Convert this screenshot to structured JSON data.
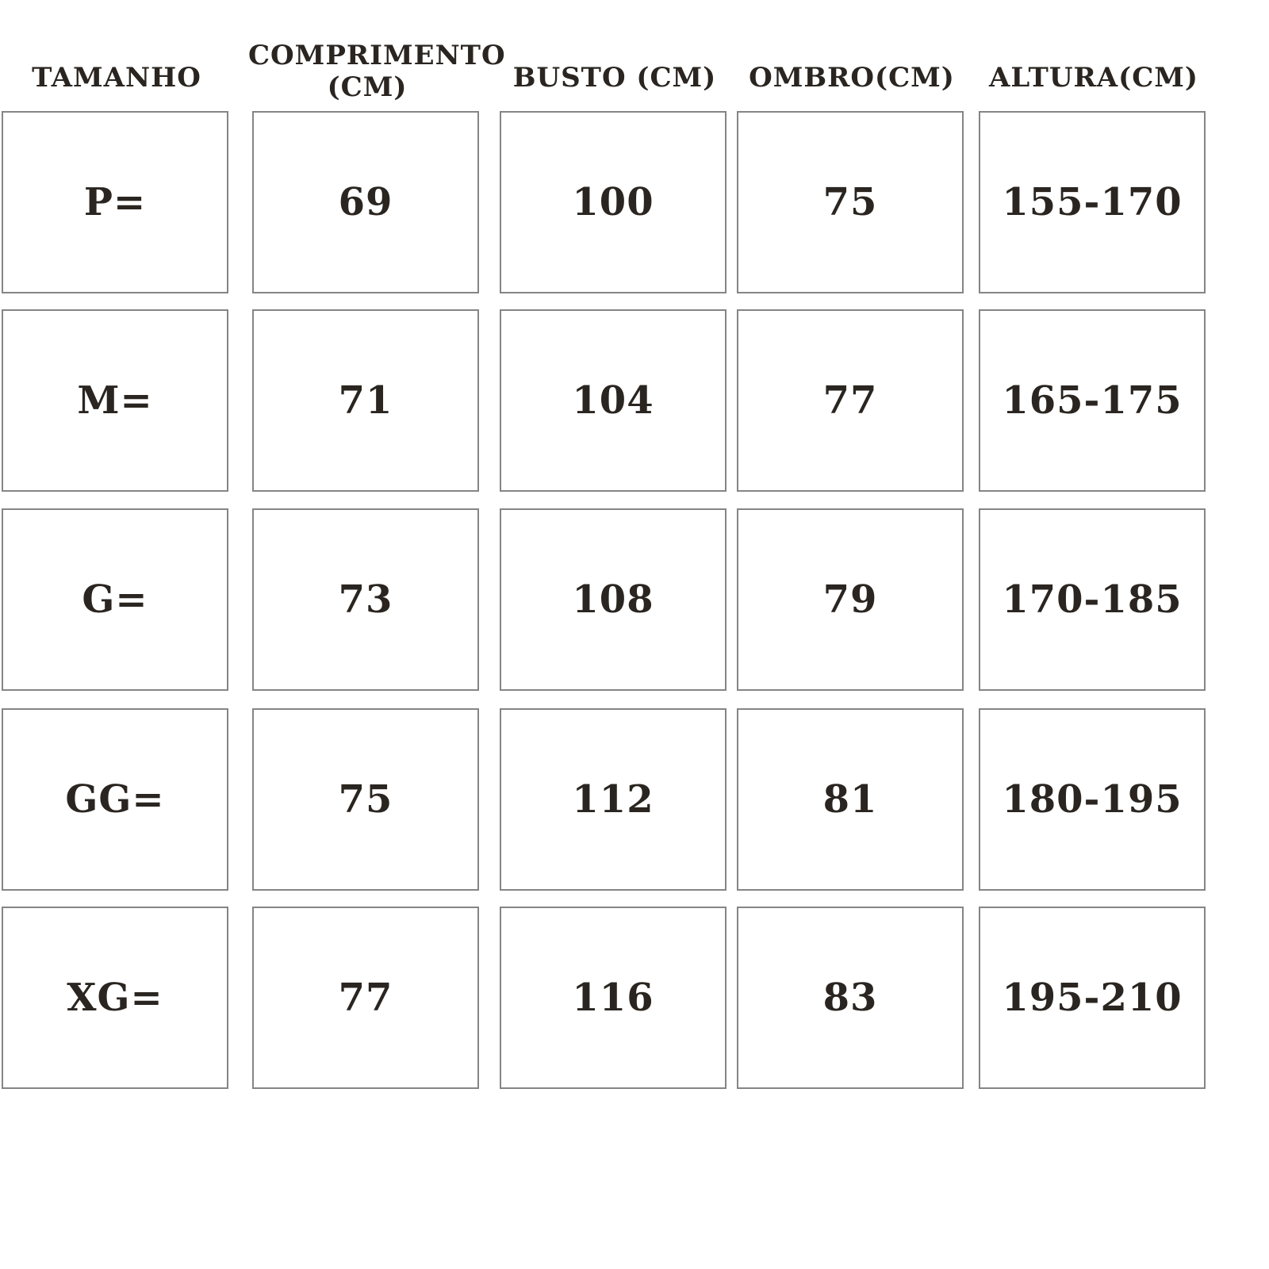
{
  "table": {
    "headers": [
      "TAMANHO",
      "COMPRIMENTO (CM)",
      "BUSTO (CM)",
      "OMBRO(CM)",
      "ALTURA(CM)"
    ],
    "rows": [
      [
        "P=",
        "69",
        "100",
        "75",
        "155-170"
      ],
      [
        "M=",
        "71",
        "104",
        "77",
        "165-175"
      ],
      [
        "G=",
        "73",
        "108",
        "79",
        "170-185"
      ],
      [
        "GG=",
        "75",
        "112",
        "81",
        "180-195"
      ],
      [
        "XG=",
        "77",
        "116",
        "83",
        "195-210"
      ]
    ]
  },
  "colors": {
    "text": "#2a2520",
    "border": "#858585",
    "background": "#ffffff"
  }
}
